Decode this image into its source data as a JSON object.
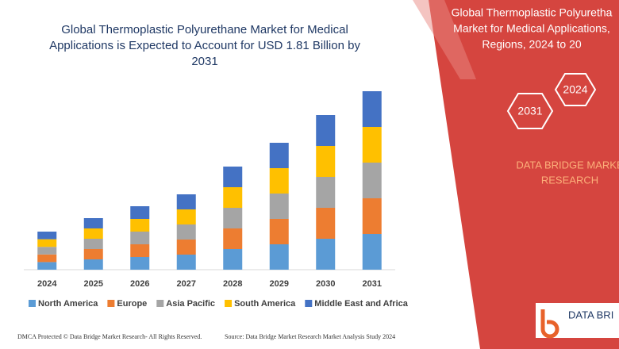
{
  "chart_data": {
    "type": "bar",
    "stacked": true,
    "title": [
      "Global Thermoplastic Polyurethane Market for Medical",
      "Applications is Expected to Account for USD 1.81 Billion by",
      "2031"
    ],
    "categories": [
      "2024",
      "2025",
      "2026",
      "2027",
      "2028",
      "2029",
      "2030",
      "2031"
    ],
    "series": [
      {
        "name": "North America",
        "color": "#5b9bd5",
        "values": [
          9.6,
          13,
          16,
          19,
          26,
          32,
          39,
          45
        ]
      },
      {
        "name": "Europe",
        "color": "#ed7d31",
        "values": [
          9.6,
          13,
          16,
          19,
          26,
          32,
          39,
          45
        ]
      },
      {
        "name": "Asia Pacific",
        "color": "#a5a5a5",
        "values": [
          9.6,
          13,
          16,
          19,
          26,
          32,
          39,
          45
        ]
      },
      {
        "name": "South America",
        "color": "#ffc000",
        "values": [
          9.6,
          13,
          16,
          19,
          26,
          32,
          39,
          45
        ]
      },
      {
        "name": "Middle East and Africa",
        "color": "#4472c4",
        "values": [
          9.6,
          13,
          16,
          19,
          26,
          32,
          39,
          45
        ]
      }
    ],
    "ylim": [
      0,
      240
    ],
    "legend": "bottom"
  },
  "panel": {
    "title": [
      "Global Thermoplastic Polyuretha",
      "Market for Medical Applications,",
      "Regions, 2024 to 20"
    ],
    "hex": [
      "2024",
      "2031"
    ],
    "brand": [
      "DATA BRIDGE MARKE",
      "RESEARCH"
    ],
    "logo": "DATA BRI"
  },
  "footer": {
    "left": "DMCA Protected © Data Bridge Market Research- All Rights Reserved.",
    "right": "Source: Data Bridge Market Research Market Analysis Study 2024"
  }
}
